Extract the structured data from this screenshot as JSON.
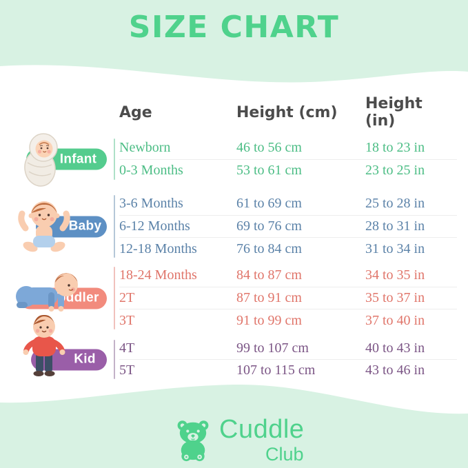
{
  "page": {
    "title": "SIZE CHART",
    "background_color": "#d8f2e3",
    "card_color": "#ffffff",
    "accent_green": "#4fd28c",
    "header_text_color": "#4c4c4c"
  },
  "table": {
    "headers": {
      "age": "Age",
      "height_cm": "Height (cm)",
      "height_in": "Height (in)"
    },
    "groups": [
      {
        "label": "Infant",
        "illustration": "swaddled-infant-illustration",
        "pill_color": "#54cc8e",
        "text_color": "#4cbd85",
        "rows": [
          {
            "age": "Newborn",
            "cm": "46 to 56 cm",
            "in": "18 to 23 in"
          },
          {
            "age": "0-3 Months",
            "cm": "53 to 61 cm",
            "in": "23 to 25 in"
          }
        ]
      },
      {
        "label": "Baby",
        "illustration": "sitting-baby-illustration",
        "pill_color": "#5d90c4",
        "text_color": "#5b82a8",
        "rows": [
          {
            "age": "3-6 Months",
            "cm": "61 to 69 cm",
            "in": "25 to 28 in"
          },
          {
            "age": "6-12 Months",
            "cm": "69 to 76 cm",
            "in": "28 to 31 in"
          },
          {
            "age": "12-18 Months",
            "cm": "76 to 84 cm",
            "in": "31 to 34 in"
          }
        ]
      },
      {
        "label": "Toddler",
        "illustration": "crawling-toddler-illustration",
        "pill_color": "#f28b7d",
        "text_color": "#e0756a",
        "rows": [
          {
            "age": "18-24 Months",
            "cm": "84 to 87 cm",
            "in": "34 to 35 in"
          },
          {
            "age": "2T",
            "cm": "87 to 91 cm",
            "in": "35 to 37 in"
          },
          {
            "age": "3T",
            "cm": "91 to 99 cm",
            "in": "37 to 40 in"
          }
        ]
      },
      {
        "label": "Kid",
        "illustration": "standing-kid-illustration",
        "pill_color": "#9a5ea8",
        "text_color": "#7b5585",
        "rows": [
          {
            "age": "4T",
            "cm": "99 to 107 cm",
            "in": "40 to 43 in"
          },
          {
            "age": "5T",
            "cm": "107 to 115 cm",
            "in": "43 to 46 in"
          }
        ]
      }
    ]
  },
  "logo": {
    "icon": "teddy-bear-icon",
    "brand": "Cuddle",
    "sub": "Club",
    "color": "#4fd28c"
  }
}
